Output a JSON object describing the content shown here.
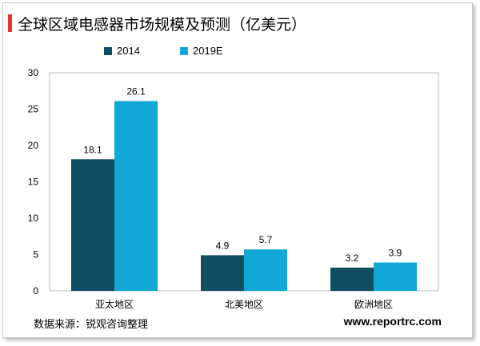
{
  "colors": {
    "series_2014": "#0e4d62",
    "series_2019E": "#12a8d6",
    "accent": "#e8322d"
  },
  "source_note": "数据来源：锐观咨询整理",
  "website": "www.reportrc.com",
  "chart_data": {
    "type": "bar",
    "title": "全球区域电感器市场规模及预测（亿美元）",
    "categories": [
      "亚太地区",
      "北美地区",
      "欧洲地区"
    ],
    "series": [
      {
        "name": "2014",
        "values": [
          18.1,
          4.9,
          3.2
        ]
      },
      {
        "name": "2019E",
        "values": [
          26.1,
          5.7,
          3.9
        ]
      }
    ],
    "ylim": [
      0,
      30
    ],
    "yticks": [
      0,
      5,
      10,
      15,
      20,
      25,
      30
    ],
    "legend_position": "top-left",
    "grid": false
  }
}
